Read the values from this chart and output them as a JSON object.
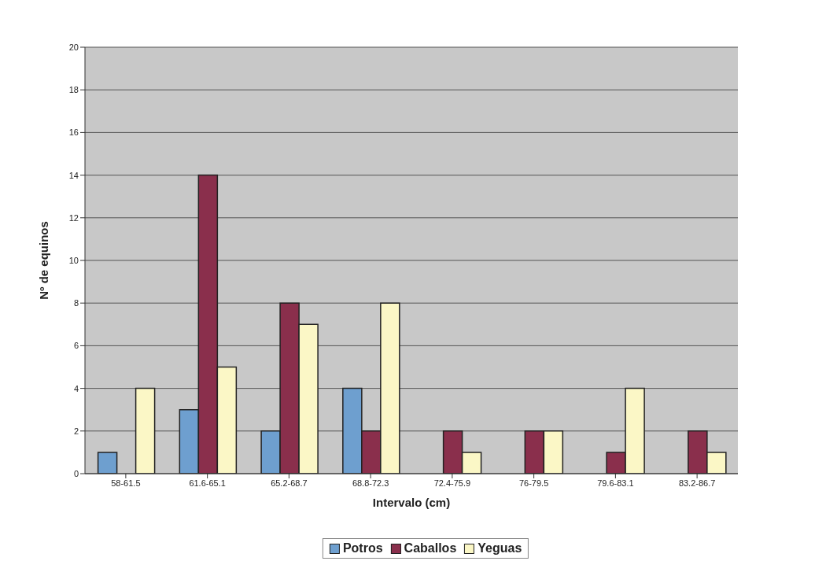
{
  "chart_data": {
    "type": "bar",
    "xlabel": "Intervalo (cm)",
    "ylabel": "Nº de equinos",
    "categories": [
      "58-61.5",
      "61.6-65.1",
      "65.2-68.7",
      "68.8-72.3",
      "72.4-75.9",
      "76-79.5",
      "79.6-83.1",
      "83.2-86.7"
    ],
    "series": [
      {
        "name": "Potros",
        "color": "#6e9fcf",
        "values": [
          1,
          3,
          2,
          4,
          0,
          0,
          0,
          0
        ]
      },
      {
        "name": "Caballos",
        "color": "#8a2f4c",
        "values": [
          0,
          14,
          8,
          2,
          2,
          2,
          1,
          2
        ]
      },
      {
        "name": "Yeguas",
        "color": "#fbf7c6",
        "values": [
          4,
          5,
          7,
          8,
          1,
          2,
          4,
          1
        ]
      }
    ],
    "ylim": [
      0,
      20
    ],
    "yticks": [
      0,
      2,
      4,
      6,
      8,
      10,
      12,
      14,
      16,
      18,
      20
    ],
    "grid": "y",
    "legend": "bottom"
  }
}
